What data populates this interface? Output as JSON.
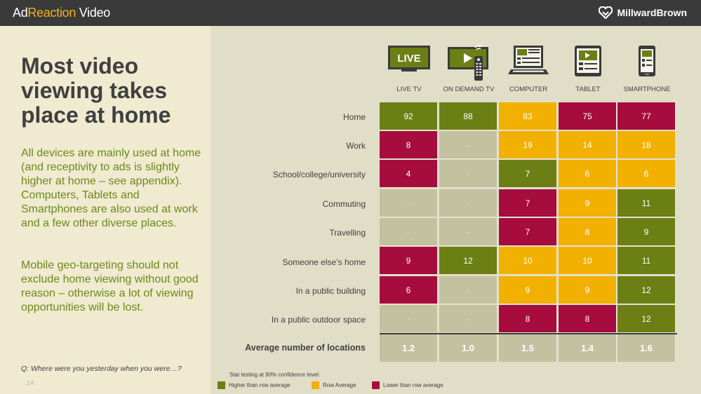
{
  "header": {
    "brand_prefix": "Ad",
    "brand_middle": "Reaction",
    "brand_suffix": " Video",
    "logo_text": "MillwardBrown"
  },
  "title": "Most video viewing takes place at home",
  "body": {
    "para1": "All devices are mainly used at home (and receptivity to ads is slightly higher at home – see appendix). Computers, Tablets and Smartphones are also used at work and a few other diverse places.",
    "para2": "Mobile geo-targeting should not exclude home viewing without good reason – otherwise a lot of viewing opportunities will be lost."
  },
  "question": "Q:  Where were you yesterday when you were…?",
  "page_number": "14",
  "devices": [
    {
      "label": "LIVE TV",
      "icon": "live-tv-icon",
      "icon_text": "LIVE"
    },
    {
      "label": "ON DEMAND TV",
      "icon": "on-demand-tv-icon"
    },
    {
      "label": "COMPUTER",
      "icon": "computer-icon"
    },
    {
      "label": "TABLET",
      "icon": "tablet-icon"
    },
    {
      "label": "SMARTPHONE",
      "icon": "smartphone-icon"
    }
  ],
  "table": {
    "rows": [
      {
        "label": "Home",
        "cells": [
          {
            "v": "92",
            "s": "g"
          },
          {
            "v": "88",
            "s": "g"
          },
          {
            "v": "83",
            "s": "o"
          },
          {
            "v": "75",
            "s": "r"
          },
          {
            "v": "77",
            "s": "r"
          }
        ]
      },
      {
        "label": "Work",
        "cells": [
          {
            "v": "8",
            "s": "r"
          },
          {
            "v": "-",
            "s": "n"
          },
          {
            "v": "19",
            "s": "o"
          },
          {
            "v": "14",
            "s": "o"
          },
          {
            "v": "18",
            "s": "o"
          }
        ]
      },
      {
        "label": "School/college/university",
        "cells": [
          {
            "v": "4",
            "s": "r"
          },
          {
            "v": "-",
            "s": "n"
          },
          {
            "v": "7",
            "s": "g"
          },
          {
            "v": "6",
            "s": "o"
          },
          {
            "v": "6",
            "s": "o"
          }
        ]
      },
      {
        "label": "Commuting",
        "cells": [
          {
            "v": "-",
            "s": "n"
          },
          {
            "v": "-",
            "s": "n"
          },
          {
            "v": "7",
            "s": "r"
          },
          {
            "v": "9",
            "s": "o"
          },
          {
            "v": "11",
            "s": "g"
          }
        ]
      },
      {
        "label": "Travelling",
        "cells": [
          {
            "v": "-",
            "s": "n"
          },
          {
            "v": "-",
            "s": "n"
          },
          {
            "v": "7",
            "s": "r"
          },
          {
            "v": "8",
            "s": "o"
          },
          {
            "v": "9",
            "s": "g"
          }
        ]
      },
      {
        "label": "Someone else’s home",
        "cells": [
          {
            "v": "9",
            "s": "r"
          },
          {
            "v": "12",
            "s": "g"
          },
          {
            "v": "10",
            "s": "o"
          },
          {
            "v": "10",
            "s": "o"
          },
          {
            "v": "11",
            "s": "g"
          }
        ]
      },
      {
        "label": "In a public building",
        "cells": [
          {
            "v": "6",
            "s": "r"
          },
          {
            "v": "-",
            "s": "n"
          },
          {
            "v": "9",
            "s": "o"
          },
          {
            "v": "9",
            "s": "o"
          },
          {
            "v": "12",
            "s": "g"
          }
        ]
      },
      {
        "label": "In a public outdoor space",
        "cells": [
          {
            "v": "-",
            "s": "n"
          },
          {
            "v": "-",
            "s": "n"
          },
          {
            "v": "8",
            "s": "r"
          },
          {
            "v": "8",
            "s": "r"
          },
          {
            "v": "12",
            "s": "g"
          }
        ]
      }
    ],
    "average": {
      "label": "Average number of locations",
      "values": [
        "1.2",
        "1.0",
        "1.5",
        "1.4",
        "1.6"
      ]
    }
  },
  "legend": {
    "title": "Stat testing at 90% confidence level:",
    "items": [
      {
        "label": "Higher than row average",
        "color": "#6b7f15"
      },
      {
        "label": "Row Average",
        "color": "#f2b000"
      },
      {
        "label": "Lower than row average",
        "color": "#a60c3e"
      }
    ]
  },
  "colors": {
    "green": "#6b7f15",
    "amber": "#f2b000",
    "red": "#a60c3e",
    "neutral": "#c4c1a0"
  }
}
